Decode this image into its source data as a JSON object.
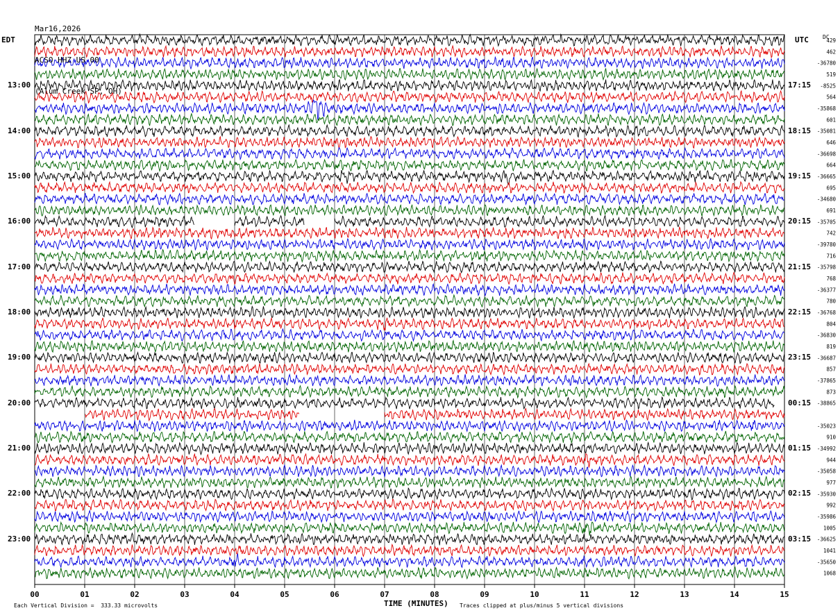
{
  "header": {
    "date": "Mar16,2026",
    "station": "ACSO HHZ US 00",
    "location": "(Alum Creek SP, OH)"
  },
  "left_timezone": "EDT",
  "right_timezone": "UTC",
  "dc_label": "DC",
  "footer": {
    "scale_note": "Each Vertical Division =  333.33 microvolts",
    "clip_note": "Traces clipped at plus/minus 5 vertical divisions"
  },
  "colors": {
    "trace_cycle": [
      "#000000",
      "#e00000",
      "#0000e0",
      "#006400"
    ],
    "grid": "#000000"
  },
  "chart_data": {
    "type": "line",
    "title": "ACSO HHZ US 00 (Alum Creek SP, OH) Mar16,2026",
    "xlabel": "TIME (MINUTES)",
    "xlim": [
      0,
      15
    ],
    "x_ticks": [
      "00",
      "01",
      "02",
      "03",
      "04",
      "05",
      "06",
      "07",
      "08",
      "09",
      "10",
      "11",
      "12",
      "13",
      "14",
      "15"
    ],
    "minutes_per_row": 15,
    "row_count": 48,
    "left_hour_labels": [
      "13:00",
      "14:00",
      "15:00",
      "16:00",
      "17:00",
      "18:00",
      "19:00",
      "20:00",
      "21:00",
      "22:00",
      "23:00"
    ],
    "right_hour_labels": [
      "17:15",
      "18:15",
      "19:15",
      "20:15",
      "21:15",
      "22:15",
      "23:15",
      "00:15",
      "01:15",
      "02:15",
      "03:15"
    ],
    "dc_offsets": [
      "429",
      "462",
      "-36780",
      "519",
      "-8525",
      "564",
      "-35868",
      "601",
      "-35081",
      "646",
      "-36698",
      "664",
      "-36665",
      "695",
      "-34680",
      "691",
      "-35705",
      "742",
      "-39780",
      "716",
      "-35798",
      "768",
      "-36377",
      "780",
      "-36768",
      "804",
      "-36830",
      "819",
      "-36687",
      "857",
      "-37865",
      "873",
      "-38865",
      "",
      "-35023",
      "910",
      "-34992",
      "944",
      "-35058",
      "977",
      "-35930",
      "992",
      "-35986",
      "1005",
      "-36625",
      "1041",
      "-35650",
      "1068"
    ],
    "gaps": [
      {
        "row": 16,
        "from_min": 3.2,
        "to_min": 4.0
      },
      {
        "row": 16,
        "from_min": 5.4,
        "to_min": 6.0
      },
      {
        "row": 32,
        "from_min": 14.8,
        "to_min": 15.0
      },
      {
        "row": 33,
        "from_min": 0.0,
        "to_min": 1.0
      },
      {
        "row": 33,
        "from_min": 5.3,
        "to_min": 7.0
      }
    ],
    "events": [
      {
        "row": 6,
        "minute": 5.65,
        "amplitude": 2.4
      },
      {
        "row": 2,
        "minute": 9.45,
        "amplitude": 1.3
      },
      {
        "row": 8,
        "minute": 12.05,
        "amplitude": 1.4
      },
      {
        "row": 12,
        "minute": 9.45,
        "amplitude": 1.6
      },
      {
        "row": 12,
        "minute": 6.2,
        "amplitude": 1.3
      },
      {
        "row": 25,
        "minute": 7.0,
        "amplitude": 1.5
      },
      {
        "row": 37,
        "minute": 11.0,
        "amplitude": 1.4
      },
      {
        "row": 43,
        "minute": 11.0,
        "amplitude": 1.6
      },
      {
        "row": 46,
        "minute": 4.0,
        "amplitude": 1.3
      }
    ]
  }
}
